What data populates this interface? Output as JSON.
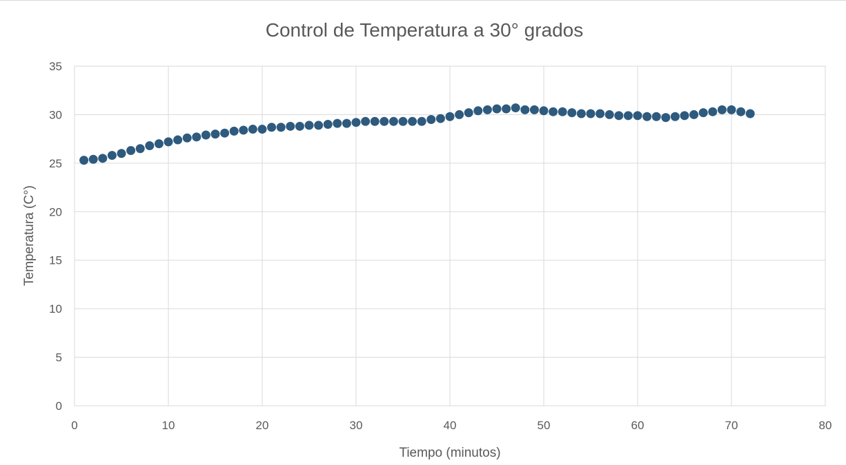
{
  "chart_data": {
    "type": "scatter",
    "title": "Control de Temperatura a 30° grados",
    "xlabel": "Tiempo (minutos)",
    "ylabel": "Temperatura (C°)",
    "xlim": [
      0,
      80
    ],
    "ylim": [
      0,
      35
    ],
    "xticks": [
      0,
      10,
      20,
      30,
      40,
      50,
      60,
      70,
      80
    ],
    "yticks": [
      0,
      5,
      10,
      15,
      20,
      25,
      30,
      35
    ],
    "grid": true,
    "legend": false,
    "marker_color": "#2e5a7e",
    "series": [
      {
        "x": [
          1,
          2,
          3,
          4,
          5,
          6,
          7,
          8,
          9,
          10,
          11,
          12,
          13,
          14,
          15,
          16,
          17,
          18,
          19,
          20,
          21,
          22,
          23,
          24,
          25,
          26,
          27,
          28,
          29,
          30,
          31,
          32,
          33,
          34,
          35,
          36,
          37,
          38,
          39,
          40,
          41,
          42,
          43,
          44,
          45,
          46,
          47,
          48,
          49,
          50,
          51,
          52,
          53,
          54,
          55,
          56,
          57,
          58,
          59,
          60,
          61,
          62,
          63,
          64,
          65,
          66,
          67,
          68,
          69,
          70,
          71,
          72
        ],
        "y": [
          25.3,
          25.4,
          25.5,
          25.8,
          26.0,
          26.3,
          26.5,
          26.8,
          27.0,
          27.2,
          27.4,
          27.6,
          27.7,
          27.9,
          28.0,
          28.1,
          28.3,
          28.4,
          28.5,
          28.5,
          28.7,
          28.7,
          28.8,
          28.8,
          28.9,
          28.9,
          29.0,
          29.1,
          29.1,
          29.2,
          29.3,
          29.3,
          29.3,
          29.3,
          29.3,
          29.3,
          29.3,
          29.5,
          29.6,
          29.8,
          30.0,
          30.2,
          30.4,
          30.5,
          30.6,
          30.6,
          30.7,
          30.5,
          30.5,
          30.4,
          30.3,
          30.3,
          30.2,
          30.1,
          30.1,
          30.1,
          30.0,
          29.9,
          29.9,
          29.9,
          29.8,
          29.8,
          29.7,
          29.8,
          29.9,
          30.0,
          30.2,
          30.3,
          30.5,
          30.5,
          30.3,
          30.1
        ]
      }
    ]
  }
}
